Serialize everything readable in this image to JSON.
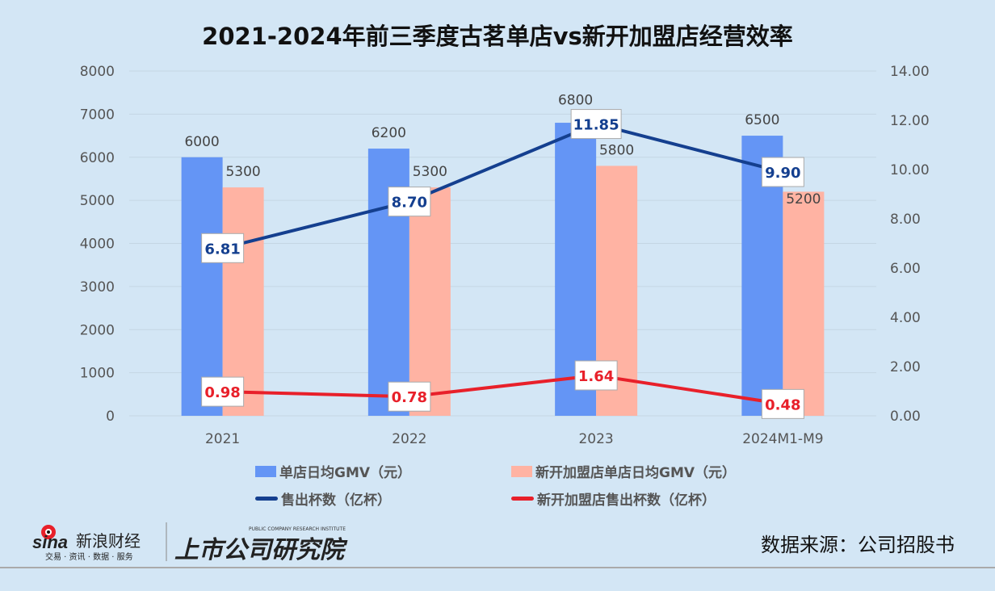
{
  "chart_data": {
    "type": "bar+line",
    "title": "2021-2024年前三季度古茗单店vs新开加盟店经营效率",
    "categories": [
      "2021",
      "2022",
      "2023",
      "2024M1-M9"
    ],
    "left_axis": {
      "range": [
        0,
        8000
      ],
      "ticks": [
        "0",
        "1000",
        "2000",
        "3000",
        "4000",
        "5000",
        "6000",
        "7000",
        "8000"
      ]
    },
    "right_axis": {
      "range": [
        0,
        14
      ],
      "ticks": [
        "0.00",
        "2.00",
        "4.00",
        "6.00",
        "8.00",
        "10.00",
        "12.00",
        "14.00"
      ]
    },
    "grid": true,
    "legend_placement": "bottom",
    "series": [
      {
        "name": "单店日均GMV（元）",
        "type": "bar",
        "axis": "left",
        "color": "#6495f5",
        "values": [
          6000,
          6200,
          6800,
          6500
        ],
        "labels": [
          "6000",
          "6200",
          "6800",
          "6500"
        ]
      },
      {
        "name": "新开加盟店单店日均GMV（元）",
        "type": "bar",
        "axis": "left",
        "color": "#ffb3a3",
        "values": [
          5300,
          5300,
          5800,
          5200
        ],
        "labels": [
          "5300",
          "5300",
          "5800",
          "5200"
        ]
      },
      {
        "name": "售出杯数（亿杯）",
        "type": "line",
        "axis": "right",
        "color": "#143f8f",
        "values": [
          6.81,
          8.7,
          11.85,
          9.9
        ],
        "labels": [
          "6.81",
          "8.70",
          "11.85",
          "9.90"
        ]
      },
      {
        "name": "新开加盟店售出杯数（亿杯）",
        "type": "line",
        "axis": "right",
        "color": "#e8202a",
        "values": [
          0.98,
          0.78,
          1.64,
          0.48
        ],
        "labels": [
          "0.98",
          "0.78",
          "1.64",
          "0.48"
        ]
      }
    ]
  },
  "footer": {
    "logo_text": "sina新浪财经 交易·资讯·数据·服务 上市公司研究院 PUBLIC COMPANY RESEARCH INSTITUTE",
    "source": "数据来源：公司招股书"
  }
}
